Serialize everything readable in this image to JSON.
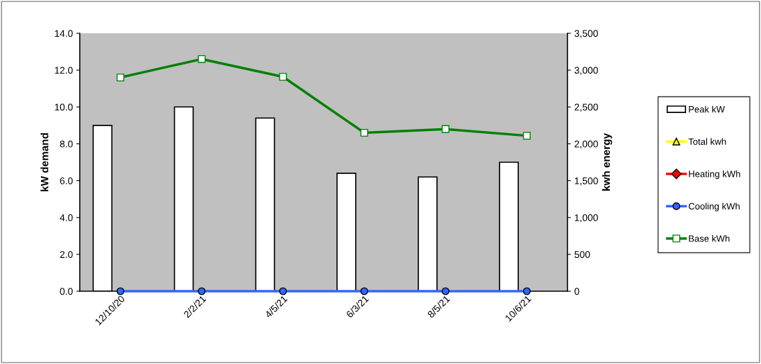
{
  "chart_data": {
    "type": "bar",
    "categories": [
      "12/10/20",
      "2/2/21",
      "4/5/21",
      "6/3/21",
      "8/5/21",
      "10/6/21"
    ],
    "ylabel": "kW demand",
    "y2label": "kwh energy",
    "series": [
      {
        "name": "Peak kW",
        "color": "#ffffff",
        "values": [
          9.0,
          10.0,
          9.4,
          6.4,
          6.2,
          7.0
        ]
      },
      {
        "name": "Total kwh",
        "type": "line",
        "axis": "y2",
        "color": "#ffff00",
        "marker": "triangle",
        "values": [
          null,
          null,
          null,
          null,
          null,
          null
        ]
      },
      {
        "name": "Heating kWh",
        "type": "line",
        "axis": "y2",
        "color": "#ff0000",
        "marker": "diamond",
        "values": [
          null,
          null,
          null,
          null,
          null,
          null
        ]
      },
      {
        "name": "Cooling kWh",
        "type": "line",
        "axis": "y2",
        "color": "#3366ff",
        "marker": "circle",
        "values": [
          0,
          0,
          0,
          0,
          0,
          0
        ]
      },
      {
        "name": "Base kWh",
        "type": "line",
        "axis": "y2",
        "color": "#008000",
        "marker": "square",
        "values": [
          2900,
          3150,
          2910,
          2150,
          2200,
          2110
        ]
      }
    ],
    "ylim": [
      0,
      14
    ],
    "yticks": [
      {
        "value": 0,
        "label": "0.0"
      },
      {
        "value": 2,
        "label": "2.0"
      },
      {
        "value": 4,
        "label": "4.0"
      },
      {
        "value": 6,
        "label": "6.0"
      },
      {
        "value": 8,
        "label": "8.0"
      },
      {
        "value": 10,
        "label": "10.0"
      },
      {
        "value": 12,
        "label": "12.0"
      },
      {
        "value": 14,
        "label": "14.0"
      }
    ],
    "y2lim": [
      0,
      3500
    ],
    "y2ticks": [
      0,
      500,
      {
        "value": 1000,
        "label": "1,000"
      },
      {
        "value": 1500,
        "label": "1,500"
      },
      {
        "value": 2000,
        "label": "2,000"
      },
      {
        "value": 2500,
        "label": "2,500"
      },
      {
        "value": 3000,
        "label": "3,000"
      },
      {
        "value": 3500,
        "label": "3,500"
      }
    ],
    "grid": false,
    "legend": "right"
  }
}
